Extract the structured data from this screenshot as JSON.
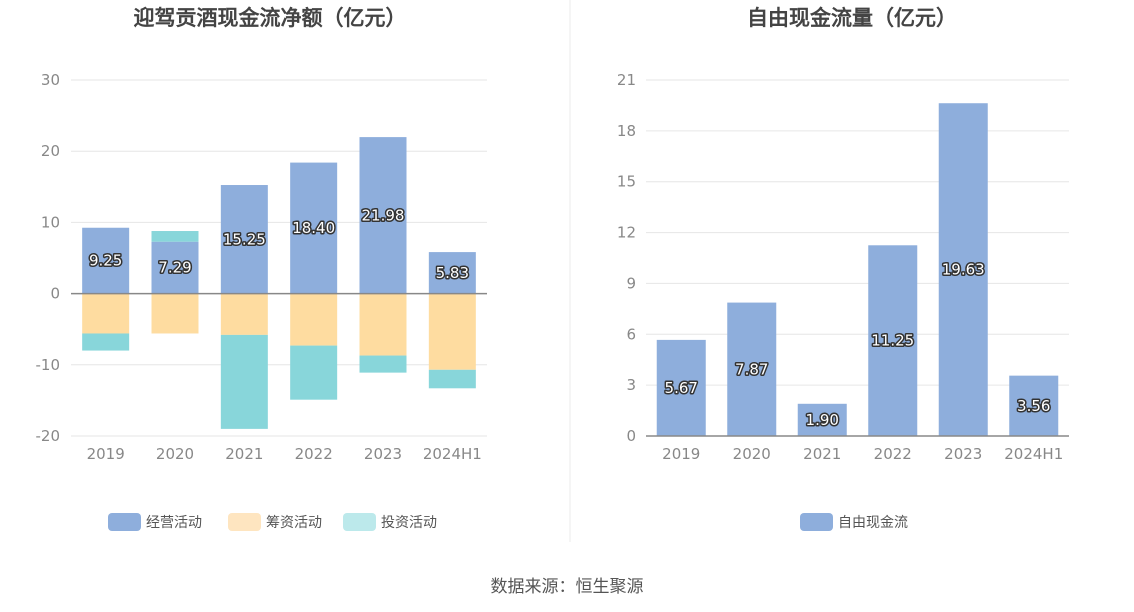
{
  "source": "数据来源：恒生聚源",
  "chart_data": [
    {
      "type": "bar",
      "stacked": true,
      "title": "迎驾贡酒现金流净额（亿元）",
      "categories": [
        "2019",
        "2020",
        "2021",
        "2022",
        "2023",
        "2024H1"
      ],
      "ylim": [
        -20,
        30
      ],
      "yticks": [
        30,
        20,
        10,
        0,
        -10,
        -20
      ],
      "grid": true,
      "legend_position": "bottom",
      "series": [
        {
          "name": "经营活动",
          "color": "#8eaedc",
          "values": [
            9.25,
            7.29,
            15.25,
            18.4,
            21.98,
            5.83
          ],
          "labels": [
            "9.25",
            "7.29",
            "15.25",
            "18.40",
            "21.98",
            "5.83"
          ]
        },
        {
          "name": "筹资活动",
          "color": "#fedca0",
          "values": [
            -5.6,
            -5.6,
            -5.8,
            -7.3,
            -8.7,
            -10.7
          ]
        },
        {
          "name": "投资活动",
          "color": "#88d6da",
          "values": [
            -2.4,
            1.5,
            -13.2,
            -7.6,
            -2.4,
            -2.6
          ]
        }
      ],
      "legend_colors": [
        "#8eaedc",
        "#fee5c0",
        "#bce9eb"
      ]
    },
    {
      "type": "bar",
      "title": "自由现金流量（亿元）",
      "categories": [
        "2019",
        "2020",
        "2021",
        "2022",
        "2023",
        "2024H1"
      ],
      "ylim": [
        0,
        21
      ],
      "yticks": [
        21,
        18,
        15,
        12,
        9,
        6,
        3,
        0
      ],
      "grid": true,
      "legend_position": "bottom",
      "series": [
        {
          "name": "自由现金流",
          "color": "#8eaedc",
          "values": [
            5.67,
            7.87,
            1.9,
            11.25,
            19.63,
            3.56
          ],
          "labels": [
            "5.67",
            "7.87",
            "1.90",
            "11.25",
            "19.63",
            "3.56"
          ]
        }
      ],
      "legend_colors": [
        "#8eaedc"
      ]
    }
  ]
}
